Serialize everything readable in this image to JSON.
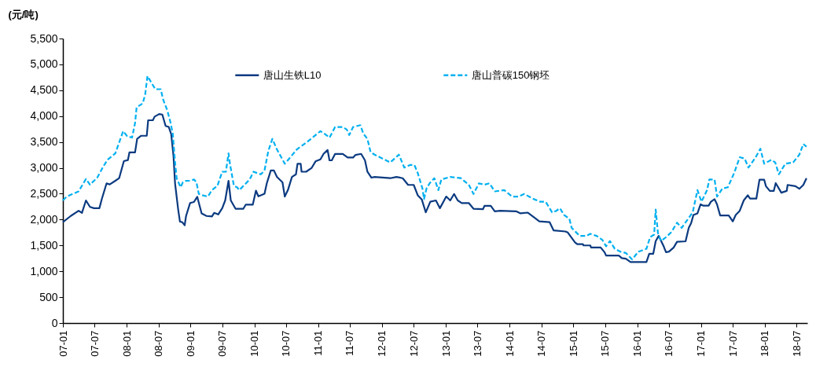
{
  "chart_data": {
    "type": "line",
    "ylabel": "(元/吨)",
    "legend": "top",
    "grid": false,
    "marker": "none",
    "xlim": [
      "2007-01-01",
      "2018-09-01"
    ],
    "xticks": [
      {
        "value": "2007-01-01",
        "label": "07-01"
      },
      {
        "value": "2007-07-01",
        "label": "07-07"
      },
      {
        "value": "2008-01-01",
        "label": "08-01"
      },
      {
        "value": "2008-07-01",
        "label": "08-07"
      },
      {
        "value": "2009-01-01",
        "label": "09-01"
      },
      {
        "value": "2009-07-01",
        "label": "09-07"
      },
      {
        "value": "2010-01-01",
        "label": "10-01"
      },
      {
        "value": "2010-07-01",
        "label": "10-07"
      },
      {
        "value": "2011-01-01",
        "label": "11-01"
      },
      {
        "value": "2011-07-01",
        "label": "11-07"
      },
      {
        "value": "2012-01-01",
        "label": "12-01"
      },
      {
        "value": "2012-07-01",
        "label": "12-07"
      },
      {
        "value": "2013-01-01",
        "label": "13-01"
      },
      {
        "value": "2013-07-01",
        "label": "13-07"
      },
      {
        "value": "2014-01-01",
        "label": "14-01"
      },
      {
        "value": "2014-07-01",
        "label": "14-07"
      },
      {
        "value": "2015-01-01",
        "label": "15-01"
      },
      {
        "value": "2015-07-01",
        "label": "15-07"
      },
      {
        "value": "2016-01-01",
        "label": "16-01"
      },
      {
        "value": "2016-07-01",
        "label": "16-07"
      },
      {
        "value": "2017-01-01",
        "label": "17-01"
      },
      {
        "value": "2017-07-01",
        "label": "17-07"
      },
      {
        "value": "2018-01-01",
        "label": "18-01"
      },
      {
        "value": "2018-07-01",
        "label": "18-07"
      }
    ],
    "ylim": [
      0,
      5500
    ],
    "yticks": [
      0,
      500,
      {
        "value": 1000,
        "label": "1,000"
      },
      {
        "value": 1500,
        "label": "1,500"
      },
      {
        "value": 2000,
        "label": "2,000"
      },
      {
        "value": 2500,
        "label": "2,500"
      },
      {
        "value": 3000,
        "label": "3,000"
      },
      {
        "value": 3500,
        "label": "3,500"
      },
      {
        "value": 4000,
        "label": "4,000"
      },
      {
        "value": 4500,
        "label": "4,500"
      },
      {
        "value": 5000,
        "label": "5,000"
      },
      {
        "value": 5500,
        "label": "5,500"
      }
    ],
    "series": [
      {
        "name": "唐山生铁L10",
        "color": "#0b3a80",
        "line_style": "solid",
        "x": [
          "2007-01-01",
          "2007-02-15",
          "2007-04-01",
          "2007-04-20",
          "2007-05-13",
          "2007-06-05",
          "2007-06-28",
          "2007-07-29",
          "2007-08-12",
          "2007-09-08",
          "2007-09-26",
          "2007-10-28",
          "2007-11-19",
          "2007-12-16",
          "2008-01-08",
          "2008-01-17",
          "2008-02-18",
          "2008-03-01",
          "2008-03-24",
          "2008-04-25",
          "2008-05-03",
          "2008-05-30",
          "2008-06-09",
          "2008-07-05",
          "2008-07-23",
          "2008-08-11",
          "2008-08-29",
          "2008-09-12",
          "2008-09-25",
          "2008-10-04",
          "2008-10-22",
          "2008-11-01",
          "2008-11-14",
          "2008-11-28",
          "2008-12-06",
          "2008-12-29",
          "2009-01-20",
          "2009-02-08",
          "2009-03-05",
          "2009-04-02",
          "2009-05-03",
          "2009-05-16",
          "2009-06-08",
          "2009-07-01",
          "2009-07-18",
          "2009-08-06",
          "2009-08-19",
          "2009-09-15",
          "2009-10-30",
          "2009-11-13",
          "2009-12-23",
          "2010-01-10",
          "2010-01-24",
          "2010-02-28",
          "2010-03-13",
          "2010-04-05",
          "2010-04-23",
          "2010-05-10",
          "2010-06-11",
          "2010-06-24",
          "2010-07-12",
          "2010-08-04",
          "2010-08-27",
          "2010-09-05",
          "2010-09-23",
          "2010-09-28",
          "2010-10-24",
          "2010-11-25",
          "2010-12-17",
          "2011-01-14",
          "2011-02-01",
          "2011-02-24",
          "2011-03-07",
          "2011-03-20",
          "2011-04-08",
          "2011-05-22",
          "2011-06-19",
          "2011-07-20",
          "2011-08-03",
          "2011-09-04",
          "2011-09-26",
          "2011-10-10",
          "2011-11-02",
          "2011-11-20",
          "2012-02-18",
          "2012-03-24",
          "2012-04-29",
          "2012-05-30",
          "2012-07-01",
          "2012-07-24",
          "2012-08-16",
          "2012-09-08",
          "2012-10-04",
          "2012-11-05",
          "2012-11-28",
          "2013-01-03",
          "2013-01-26",
          "2013-02-17",
          "2013-03-10",
          "2013-04-02",
          "2013-05-12",
          "2013-06-08",
          "2013-08-01",
          "2013-08-10",
          "2013-09-15",
          "2013-10-08",
          "2013-11-08",
          "2014-02-07",
          "2014-03-04",
          "2014-04-14",
          "2014-05-20",
          "2014-06-20",
          "2014-08-18",
          "2014-09-10",
          "2014-11-16",
          "2014-11-30",
          "2015-01-10",
          "2015-01-23",
          "2015-02-24",
          "2015-02-28",
          "2015-04-08",
          "2015-04-12",
          "2015-06-06",
          "2015-06-28",
          "2015-07-07",
          "2015-09-18",
          "2015-10-05",
          "2015-10-28",
          "2015-11-24",
          "2016-02-23",
          "2016-03-10",
          "2016-04-02",
          "2016-04-16",
          "2016-05-03",
          "2016-06-01",
          "2016-06-14",
          "2016-07-01",
          "2016-07-28",
          "2016-08-16",
          "2016-10-04",
          "2016-10-22",
          "2016-11-05",
          "2016-11-18",
          "2016-12-11",
          "2016-12-29",
          "2017-01-12",
          "2017-02-13",
          "2017-02-26",
          "2017-03-19",
          "2017-04-02",
          "2017-04-20",
          "2017-06-08",
          "2017-07-01",
          "2017-07-18",
          "2017-08-10",
          "2017-09-02",
          "2017-09-25",
          "2017-10-08",
          "2017-11-13",
          "2017-12-01",
          "2017-12-28",
          "2018-01-07",
          "2018-01-29",
          "2018-02-21",
          "2018-03-04",
          "2018-04-05",
          "2018-05-06",
          "2018-05-11",
          "2018-06-25",
          "2018-07-17",
          "2018-08-09",
          "2018-08-27"
        ],
        "values": [
          1950,
          2070,
          2170,
          2130,
          2370,
          2245,
          2220,
          2220,
          2400,
          2700,
          2680,
          2750,
          2800,
          3130,
          3150,
          3300,
          3300,
          3560,
          3620,
          3620,
          3920,
          3920,
          3990,
          4040,
          4030,
          3810,
          3790,
          3650,
          3230,
          2700,
          2190,
          1960,
          1950,
          1890,
          2070,
          2320,
          2340,
          2440,
          2120,
          2070,
          2060,
          2130,
          2100,
          2220,
          2370,
          2750,
          2370,
          2210,
          2210,
          2290,
          2290,
          2560,
          2450,
          2500,
          2700,
          2950,
          2950,
          2825,
          2720,
          2445,
          2570,
          2825,
          2875,
          3080,
          3080,
          2925,
          2925,
          3000,
          3125,
          3165,
          3270,
          3345,
          3145,
          3145,
          3270,
          3270,
          3200,
          3200,
          3250,
          3270,
          3145,
          2925,
          2810,
          2825,
          2800,
          2825,
          2800,
          2670,
          2670,
          2470,
          2390,
          2140,
          2345,
          2370,
          2220,
          2445,
          2370,
          2495,
          2370,
          2320,
          2320,
          2210,
          2200,
          2265,
          2265,
          2160,
          2170,
          2160,
          2120,
          2135,
          2045,
          1965,
          1950,
          1790,
          1770,
          1750,
          1560,
          1525,
          1525,
          1500,
          1500,
          1460,
          1460,
          1370,
          1305,
          1305,
          1255,
          1245,
          1180,
          1180,
          1340,
          1340,
          1585,
          1685,
          1480,
          1370,
          1380,
          1460,
          1570,
          1580,
          1840,
          1935,
          2090,
          2120,
          2295,
          2270,
          2270,
          2345,
          2395,
          2295,
          2080,
          2080,
          1965,
          2090,
          2170,
          2370,
          2470,
          2405,
          2405,
          2770,
          2770,
          2645,
          2555,
          2555,
          2705,
          2520,
          2555,
          2670,
          2645,
          2595,
          2670,
          2800
        ]
      },
      {
        "name": "唐山普碳150钢坯",
        "color": "#00b0f0",
        "line_style": "dashed",
        "x": [
          "2007-01-01",
          "2007-01-23",
          "2007-04-01",
          "2007-05-13",
          "2007-06-05",
          "2007-06-28",
          "2007-07-15",
          "2007-08-21",
          "2007-09-13",
          "2007-10-28",
          "2007-12-12",
          "2008-01-04",
          "2008-02-01",
          "2008-02-18",
          "2008-02-27",
          "2008-04-02",
          "2008-04-16",
          "2008-04-29",
          "2008-05-21",
          "2008-06-13",
          "2008-07-14",
          "2008-07-28",
          "2008-08-20",
          "2008-09-07",
          "2008-09-21",
          "2008-10-04",
          "2008-10-13",
          "2008-11-05",
          "2008-11-18",
          "2008-12-06",
          "2009-01-02",
          "2009-01-20",
          "2009-02-03",
          "2009-02-17",
          "2009-03-09",
          "2009-04-10",
          "2009-05-03",
          "2009-06-03",
          "2009-07-01",
          "2009-07-22",
          "2009-08-06",
          "2009-08-14",
          "2009-09-06",
          "2009-09-24",
          "2009-10-07",
          "2009-10-30",
          "2009-12-05",
          "2009-12-27",
          "2010-02-07",
          "2010-02-28",
          "2010-03-22",
          "2010-04-14",
          "2010-05-10",
          "2010-06-24",
          "2010-07-26",
          "2010-09-01",
          "2010-10-24",
          "2010-11-30",
          "2011-01-14",
          "2011-02-06",
          "2011-03-07",
          "2011-04-08",
          "2011-05-22",
          "2011-06-14",
          "2011-06-28",
          "2011-07-20",
          "2011-08-30",
          "2011-09-17",
          "2011-10-10",
          "2011-10-28",
          "2011-11-20",
          "2012-01-04",
          "2012-02-18",
          "2012-04-07",
          "2012-05-08",
          "2012-06-09",
          "2012-07-05",
          "2012-07-24",
          "2012-08-20",
          "2012-08-29",
          "2012-09-12",
          "2012-09-30",
          "2012-10-27",
          "2012-11-19",
          "2012-12-06",
          "2013-01-26",
          "2013-03-28",
          "2013-05-12",
          "2013-06-08",
          "2013-07-09",
          "2013-08-10",
          "2013-09-07",
          "2013-10-08",
          "2013-12-01",
          "2014-01-15",
          "2014-02-20",
          "2014-03-26",
          "2014-05-20",
          "2014-06-25",
          "2014-07-26",
          "2014-09-01",
          "2014-09-23",
          "2014-10-16",
          "2014-11-08",
          "2014-12-09",
          "2014-12-22",
          "2015-02-06",
          "2015-03-16",
          "2015-04-08",
          "2015-05-14",
          "2015-06-15",
          "2015-07-07",
          "2015-07-29",
          "2015-08-26",
          "2015-09-27",
          "2015-10-28",
          "2015-12-03",
          "2016-01-08",
          "2016-02-23",
          "2016-03-15",
          "2016-04-07",
          "2016-04-16",
          "2016-04-29",
          "2016-05-17",
          "2016-06-14",
          "2016-07-15",
          "2016-08-16",
          "2016-09-12",
          "2016-10-13",
          "2016-11-14",
          "2016-12-11",
          "2017-01-03",
          "2017-02-04",
          "2017-02-17",
          "2017-03-19",
          "2017-04-02",
          "2017-05-03",
          "2017-06-03",
          "2017-07-09",
          "2017-08-10",
          "2017-09-07",
          "2017-09-29",
          "2017-11-09",
          "2017-12-06",
          "2017-12-28",
          "2018-02-08",
          "2018-03-01",
          "2018-03-22",
          "2018-04-28",
          "2018-06-12",
          "2018-07-17",
          "2018-08-09",
          "2018-08-27"
        ],
        "values": [
          2370,
          2445,
          2545,
          2785,
          2675,
          2750,
          2800,
          3030,
          3155,
          3280,
          3710,
          3610,
          3585,
          3865,
          4170,
          4245,
          4420,
          4775,
          4650,
          4520,
          4520,
          4320,
          4115,
          3890,
          3660,
          3105,
          2800,
          2625,
          2725,
          2750,
          2750,
          2775,
          2725,
          2495,
          2470,
          2445,
          2570,
          2650,
          2925,
          2925,
          3280,
          3080,
          2650,
          2625,
          2570,
          2650,
          2775,
          2925,
          2875,
          2950,
          3330,
          3560,
          3357,
          3080,
          3205,
          3357,
          3485,
          3585,
          3710,
          3660,
          3585,
          3790,
          3790,
          3740,
          3635,
          3790,
          3825,
          3660,
          3560,
          3305,
          3255,
          3180,
          3105,
          3255,
          3005,
          3055,
          3055,
          2900,
          2600,
          2395,
          2600,
          2700,
          2800,
          2570,
          2775,
          2825,
          2800,
          2675,
          2495,
          2700,
          2675,
          2700,
          2545,
          2570,
          2445,
          2445,
          2495,
          2395,
          2345,
          2345,
          2140,
          2165,
          2220,
          2090,
          2015,
          1840,
          1685,
          1685,
          1725,
          1685,
          1610,
          1485,
          1585,
          1435,
          1380,
          1355,
          1230,
          1380,
          1435,
          1660,
          1710,
          2195,
          1735,
          1585,
          1660,
          1760,
          1940,
          1840,
          1990,
          2140,
          2570,
          2345,
          2570,
          2775,
          2775,
          2445,
          2600,
          2625,
          2900,
          3205,
          3180,
          3005,
          3205,
          3370,
          3080,
          3155,
          3105,
          2875,
          3080,
          3105,
          3255,
          3460,
          3410
        ]
      }
    ]
  }
}
